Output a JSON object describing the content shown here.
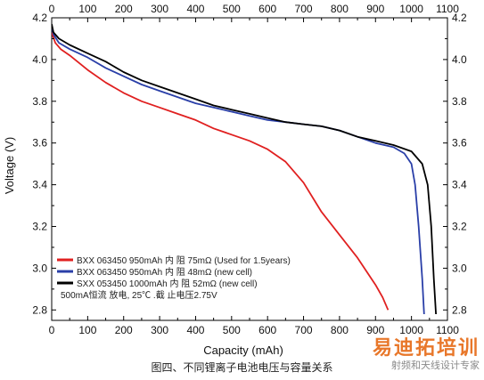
{
  "caption": "图四、不同锂离子电池电压与容量关系",
  "watermark": {
    "main": "易迪拓培训",
    "sub": "射频和天线设计专家"
  },
  "chart_data": {
    "type": "line",
    "title": "",
    "xlabel": "Capacity (mAh)",
    "ylabel": "Voltage (V)",
    "xlim": [
      0,
      1100
    ],
    "ylim": [
      2.75,
      4.2
    ],
    "x_ticks": [
      0,
      100,
      200,
      300,
      400,
      500,
      600,
      700,
      800,
      900,
      1000,
      1100
    ],
    "x_tick_labels": [
      "0",
      "100",
      "200",
      "300",
      "400",
      "500",
      "600",
      "700",
      "800",
      "900",
      "1000",
      "1100"
    ],
    "y_ticks": [
      2.8,
      3.0,
      3.2,
      3.4,
      3.6,
      3.8,
      4.0,
      4.2
    ],
    "y_tick_labels": [
      "2.8",
      "3.0",
      "3.2",
      "3.4",
      "3.6",
      "3.8",
      "4.0",
      "4.2"
    ],
    "mirror_axes": true,
    "grid": false,
    "legend_position": "bottom-left",
    "legend_note": "500mA恒流 放电, 25℃ .截  止电压2.75V",
    "series": [
      {
        "name": "BXX 063450 950mAh  内 阻 75mΩ (Used for 1.5years)",
        "color": "#e02020",
        "x": [
          0,
          10,
          25,
          50,
          100,
          150,
          200,
          250,
          300,
          350,
          400,
          450,
          500,
          550,
          600,
          650,
          700,
          750,
          800,
          850,
          900,
          920,
          935
        ],
        "y": [
          4.13,
          4.08,
          4.05,
          4.02,
          3.95,
          3.89,
          3.84,
          3.8,
          3.77,
          3.74,
          3.71,
          3.67,
          3.64,
          3.61,
          3.57,
          3.51,
          3.41,
          3.27,
          3.16,
          3.05,
          2.92,
          2.86,
          2.8
        ]
      },
      {
        "name": "BXX 063450 950mAh  内 阻 48mΩ (new cell)",
        "color": "#2a3fa8",
        "x": [
          0,
          5,
          20,
          50,
          100,
          150,
          200,
          250,
          300,
          350,
          400,
          450,
          500,
          550,
          600,
          650,
          700,
          750,
          800,
          850,
          900,
          950,
          980,
          1000,
          1010,
          1020,
          1030,
          1035
        ],
        "y": [
          4.16,
          4.12,
          4.08,
          4.05,
          4.01,
          3.96,
          3.92,
          3.88,
          3.85,
          3.82,
          3.79,
          3.77,
          3.75,
          3.73,
          3.71,
          3.7,
          3.69,
          3.68,
          3.66,
          3.63,
          3.6,
          3.58,
          3.55,
          3.5,
          3.4,
          3.2,
          2.95,
          2.78
        ]
      },
      {
        "name": "SXX 053450 1000mAh  内 阻 52mΩ  (new cell)",
        "color": "#000000",
        "x": [
          0,
          5,
          20,
          50,
          100,
          150,
          200,
          250,
          300,
          350,
          400,
          450,
          500,
          550,
          600,
          650,
          700,
          750,
          800,
          850,
          900,
          950,
          1000,
          1030,
          1045,
          1055,
          1062,
          1068
        ],
        "y": [
          4.17,
          4.13,
          4.1,
          4.07,
          4.03,
          3.99,
          3.94,
          3.9,
          3.87,
          3.84,
          3.81,
          3.78,
          3.76,
          3.74,
          3.72,
          3.7,
          3.69,
          3.68,
          3.66,
          3.63,
          3.61,
          3.59,
          3.56,
          3.5,
          3.4,
          3.2,
          2.95,
          2.78
        ]
      }
    ]
  }
}
